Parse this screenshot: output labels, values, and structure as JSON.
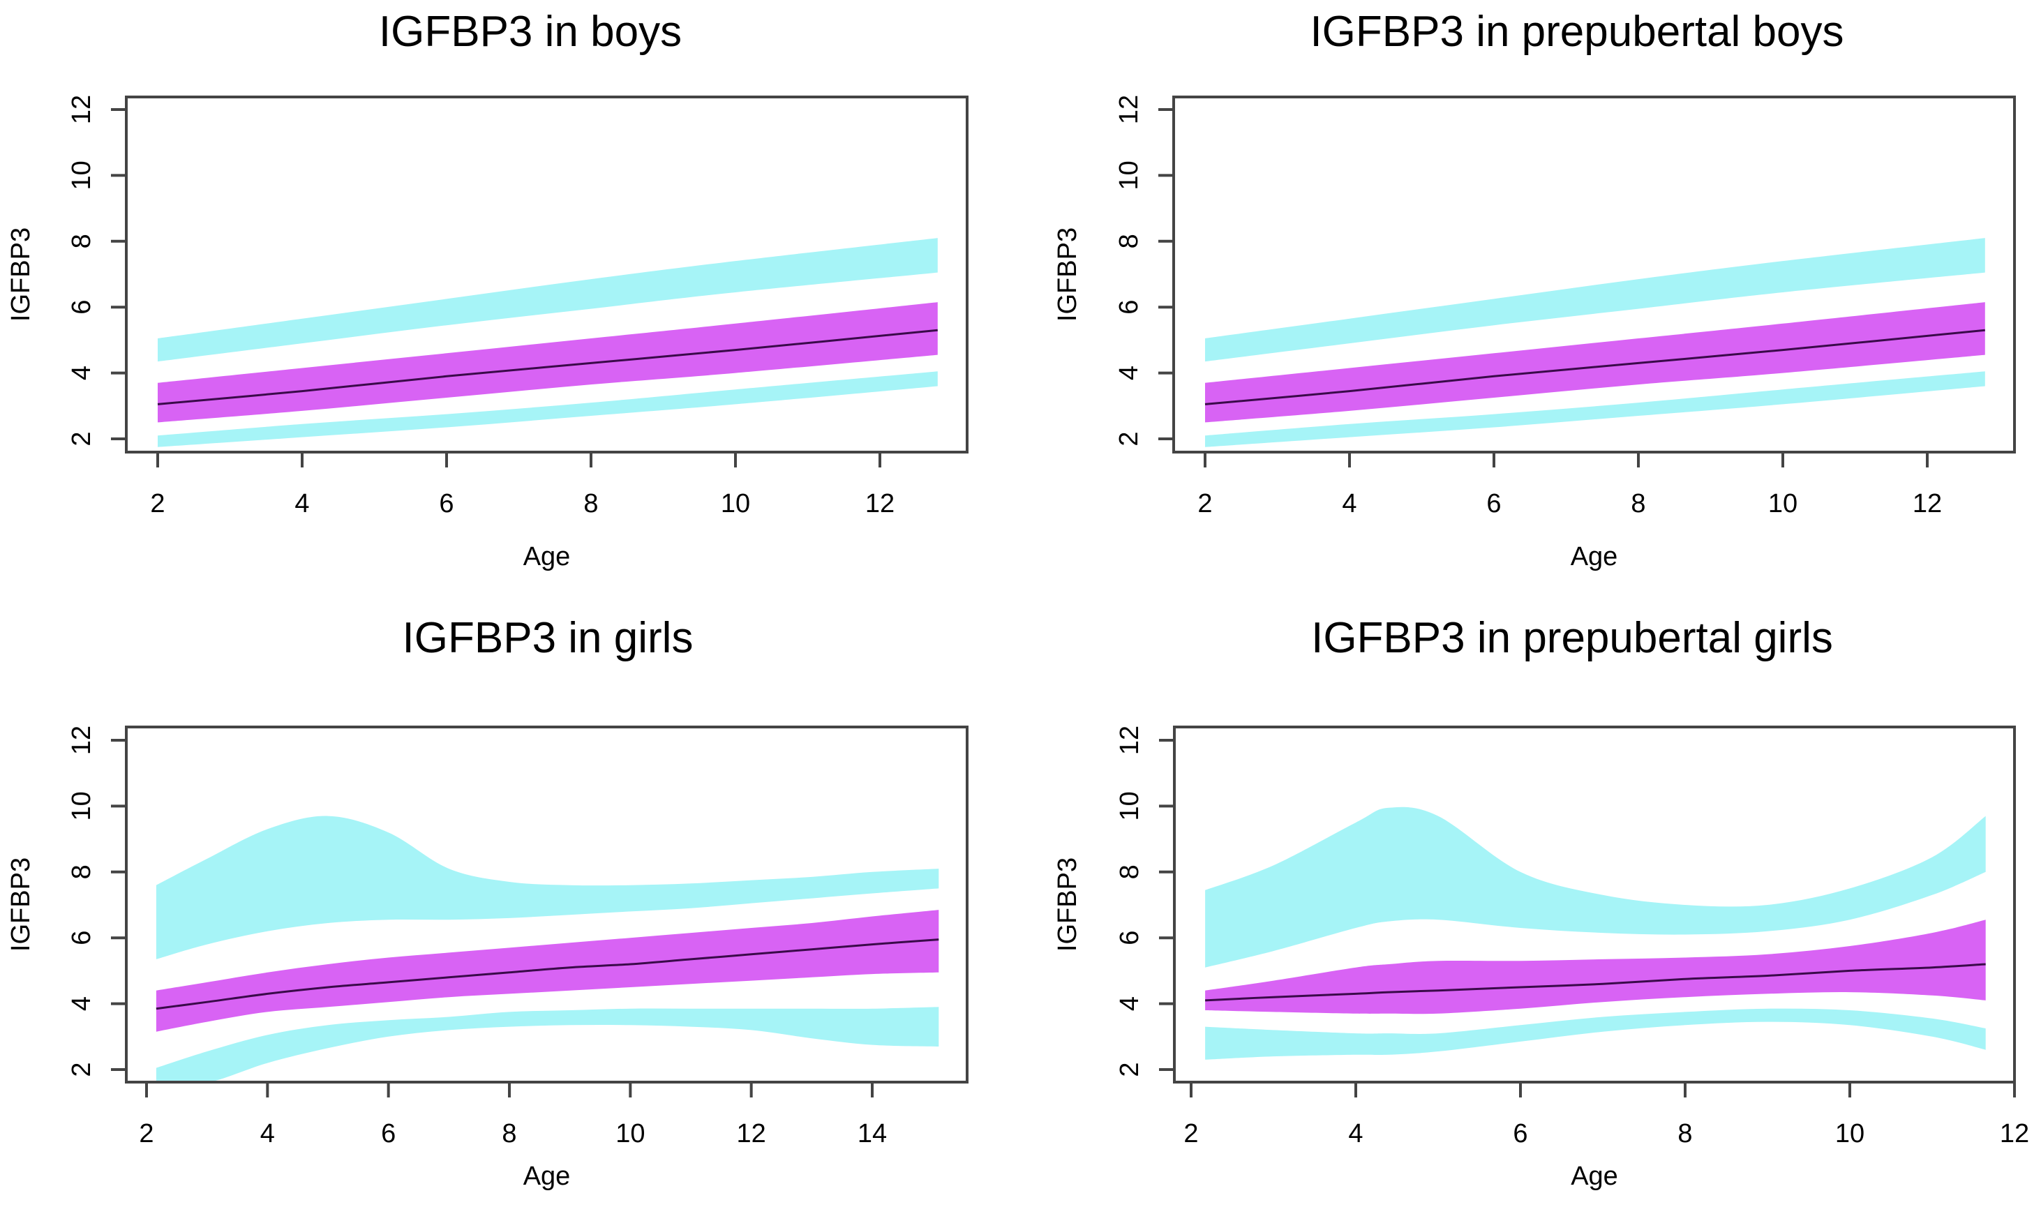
{
  "colors": {
    "outer_band": "#a6f4f7",
    "inner_band": "#d863f4",
    "mean_line": "#3a0a4a",
    "frame": "#444444"
  },
  "chart_data": [
    {
      "type": "area",
      "title": "IGFBP3 in boys",
      "xlabel": "Age",
      "ylabel": "IGFBP3",
      "xlim": [
        2,
        12.8
      ],
      "ylim": [
        1.7,
        12.5
      ],
      "xticks": [
        2,
        4,
        6,
        8,
        10,
        12
      ],
      "yticks": [
        2,
        4,
        6,
        8,
        10,
        12
      ],
      "grid": false,
      "x": [
        2,
        4,
        6,
        8,
        10,
        12.8
      ],
      "series": [
        {
          "name": "upper outer band top",
          "values": [
            5.05,
            5.65,
            6.25,
            6.85,
            7.4,
            8.1
          ]
        },
        {
          "name": "upper outer band bottom",
          "values": [
            4.35,
            4.9,
            5.45,
            5.95,
            6.45,
            7.05
          ]
        },
        {
          "name": "inner band top",
          "values": [
            3.7,
            4.15,
            4.6,
            5.05,
            5.5,
            6.15
          ]
        },
        {
          "name": "mean",
          "values": [
            3.05,
            3.45,
            3.9,
            4.3,
            4.7,
            5.3
          ]
        },
        {
          "name": "inner band bottom",
          "values": [
            2.5,
            2.85,
            3.25,
            3.65,
            4.0,
            4.55
          ]
        },
        {
          "name": "lower outer band top",
          "values": [
            2.1,
            2.45,
            2.75,
            3.1,
            3.5,
            4.05
          ]
        },
        {
          "name": "lower outer band bottom",
          "values": [
            1.75,
            2.05,
            2.35,
            2.7,
            3.05,
            3.6
          ]
        }
      ]
    },
    {
      "type": "area",
      "title": "IGFBP3 in prepubertal boys",
      "xlabel": "Age",
      "ylabel": "IGFBP3",
      "xlim": [
        2,
        12.8
      ],
      "ylim": [
        1.7,
        12.5
      ],
      "xticks": [
        2,
        4,
        6,
        8,
        10,
        12
      ],
      "yticks": [
        2,
        4,
        6,
        8,
        10,
        12
      ],
      "grid": false,
      "x": [
        2,
        4,
        6,
        8,
        10,
        12.8
      ],
      "series": [
        {
          "name": "upper outer band top",
          "values": [
            5.05,
            5.65,
            6.25,
            6.85,
            7.4,
            8.1
          ]
        },
        {
          "name": "upper outer band bottom",
          "values": [
            4.35,
            4.9,
            5.45,
            5.95,
            6.45,
            7.05
          ]
        },
        {
          "name": "inner band top",
          "values": [
            3.7,
            4.15,
            4.6,
            5.05,
            5.5,
            6.15
          ]
        },
        {
          "name": "mean",
          "values": [
            3.05,
            3.45,
            3.9,
            4.3,
            4.7,
            5.3
          ]
        },
        {
          "name": "inner band bottom",
          "values": [
            2.5,
            2.85,
            3.25,
            3.65,
            4.0,
            4.55
          ]
        },
        {
          "name": "lower outer band top",
          "values": [
            2.1,
            2.45,
            2.75,
            3.1,
            3.5,
            4.05
          ]
        },
        {
          "name": "lower outer band bottom",
          "values": [
            1.75,
            2.05,
            2.35,
            2.7,
            3.05,
            3.6
          ]
        }
      ]
    },
    {
      "type": "area",
      "title": "IGFBP3 in girls",
      "xlabel": "Age",
      "ylabel": "IGFBP3",
      "xlim": [
        2,
        15.1
      ],
      "ylim": [
        1.6,
        12.4
      ],
      "xticks": [
        2,
        4,
        6,
        8,
        10,
        12,
        14
      ],
      "yticks": [
        2,
        4,
        6,
        8,
        10,
        12
      ],
      "grid": false,
      "x": [
        2.16,
        3,
        4,
        5,
        6,
        7,
        8,
        9,
        10,
        11,
        12,
        13,
        14,
        15.1
      ],
      "series": [
        {
          "name": "upper outer band top",
          "values": [
            7.6,
            8.4,
            9.3,
            9.7,
            9.2,
            8.1,
            7.7,
            7.6,
            7.6,
            7.65,
            7.75,
            7.85,
            8.0,
            8.1
          ]
        },
        {
          "name": "upper outer band bottom",
          "values": [
            5.35,
            5.8,
            6.2,
            6.45,
            6.55,
            6.55,
            6.6,
            6.7,
            6.8,
            6.9,
            7.05,
            7.2,
            7.35,
            7.5
          ]
        },
        {
          "name": "inner band top",
          "values": [
            4.4,
            4.65,
            4.95,
            5.2,
            5.4,
            5.55,
            5.7,
            5.85,
            6.0,
            6.15,
            6.3,
            6.45,
            6.65,
            6.85
          ]
        },
        {
          "name": "mean",
          "values": [
            3.85,
            4.05,
            4.3,
            4.5,
            4.65,
            4.8,
            4.95,
            5.1,
            5.2,
            5.35,
            5.5,
            5.65,
            5.8,
            5.95
          ]
        },
        {
          "name": "inner band bottom",
          "values": [
            3.15,
            3.45,
            3.75,
            3.9,
            4.05,
            4.2,
            4.3,
            4.4,
            4.5,
            4.6,
            4.7,
            4.8,
            4.9,
            4.95
          ]
        },
        {
          "name": "lower outer band top",
          "values": [
            2.05,
            2.55,
            3.05,
            3.35,
            3.5,
            3.6,
            3.75,
            3.8,
            3.85,
            3.85,
            3.85,
            3.85,
            3.85,
            3.9
          ]
        },
        {
          "name": "lower outer band bottom",
          "values": [
            1.55,
            1.6,
            2.2,
            2.65,
            3.0,
            3.2,
            3.3,
            3.35,
            3.35,
            3.3,
            3.2,
            2.95,
            2.75,
            2.7
          ]
        }
      ]
    },
    {
      "type": "area",
      "title": "IGFBP3 in prepubertal girls",
      "xlabel": "Age",
      "ylabel": "IGFBP3",
      "xlim": [
        1.8,
        12
      ],
      "ylim": [
        1.6,
        12.4
      ],
      "xticks": [
        2,
        4,
        6,
        8,
        10,
        12
      ],
      "yticks": [
        2,
        4,
        6,
        8,
        10,
        12
      ],
      "grid": false,
      "x": [
        2.17,
        3,
        4,
        4.4,
        5,
        6,
        7,
        8,
        9,
        10,
        11,
        11.65
      ],
      "series": [
        {
          "name": "upper outer band top",
          "values": [
            7.45,
            8.2,
            9.5,
            9.95,
            9.7,
            8.0,
            7.3,
            7.0,
            7.0,
            7.5,
            8.45,
            9.7
          ]
        },
        {
          "name": "upper outer band bottom",
          "values": [
            5.1,
            5.6,
            6.3,
            6.5,
            6.55,
            6.3,
            6.15,
            6.1,
            6.2,
            6.55,
            7.3,
            8.0
          ]
        },
        {
          "name": "inner band top",
          "values": [
            4.4,
            4.7,
            5.1,
            5.2,
            5.3,
            5.3,
            5.35,
            5.4,
            5.5,
            5.75,
            6.15,
            6.55
          ]
        },
        {
          "name": "mean",
          "values": [
            4.1,
            4.2,
            4.3,
            4.35,
            4.4,
            4.5,
            4.6,
            4.75,
            4.85,
            5.0,
            5.1,
            5.2
          ]
        },
        {
          "name": "inner band bottom",
          "values": [
            3.8,
            3.75,
            3.7,
            3.7,
            3.7,
            3.85,
            4.05,
            4.2,
            4.3,
            4.35,
            4.25,
            4.1
          ]
        },
        {
          "name": "lower outer band top",
          "values": [
            3.3,
            3.2,
            3.1,
            3.1,
            3.1,
            3.35,
            3.6,
            3.75,
            3.85,
            3.8,
            3.55,
            3.25
          ]
        },
        {
          "name": "lower outer band bottom",
          "values": [
            2.3,
            2.4,
            2.45,
            2.45,
            2.55,
            2.85,
            3.15,
            3.35,
            3.45,
            3.35,
            3.0,
            2.6
          ]
        }
      ]
    }
  ]
}
